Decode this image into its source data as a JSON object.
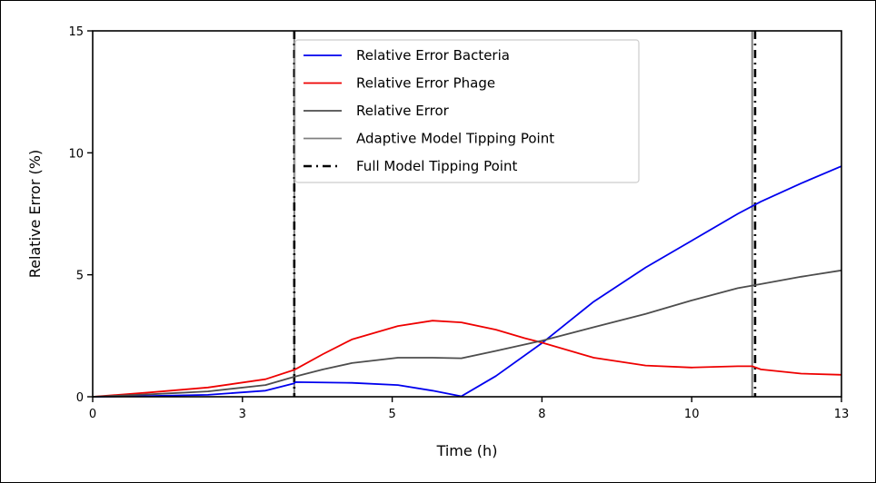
{
  "chart_data": {
    "type": "line",
    "title": "",
    "xlabel": "Time (h)",
    "ylabel": "Relative Error (%)",
    "xlim": [
      0,
      13
    ],
    "ylim": [
      0,
      15
    ],
    "x_ticks": [
      0,
      2.6,
      5.2,
      7.8,
      10.4,
      13
    ],
    "x_tick_labels": [
      "0",
      "3",
      "5",
      "8",
      "10",
      "13"
    ],
    "y_ticks": [
      0,
      5,
      10,
      15
    ],
    "y_tick_labels": [
      "0",
      "5",
      "10",
      "15"
    ],
    "grid": false,
    "legend_position": "top-center",
    "series": [
      {
        "name": "Relative Error Bacteria",
        "color": "#0000ee",
        "x": [
          0,
          1,
          2,
          3,
          3.5,
          3.52,
          4.5,
          5.3,
          5.9,
          6.4,
          7,
          7.8,
          8.7,
          9.6,
          10.4,
          11.2,
          11.6,
          12.3,
          13
        ],
        "y": [
          0,
          0.03,
          0.08,
          0.25,
          0.55,
          0.6,
          0.57,
          0.48,
          0.25,
          0.02,
          0.85,
          2.2,
          3.9,
          5.3,
          6.4,
          7.5,
          8.0,
          8.75,
          9.45
        ]
      },
      {
        "name": "Relative Error Phage",
        "color": "#ee0000",
        "x": [
          0,
          1,
          2,
          3,
          3.5,
          4,
          4.5,
          5.3,
          5.9,
          6.4,
          7,
          7.5,
          7.8,
          8.7,
          9.6,
          10.4,
          11.2,
          11.45,
          11.6,
          12.3,
          13
        ],
        "y": [
          0,
          0.18,
          0.38,
          0.72,
          1.1,
          1.75,
          2.35,
          2.9,
          3.12,
          3.05,
          2.75,
          2.4,
          2.22,
          1.6,
          1.28,
          1.2,
          1.25,
          1.25,
          1.12,
          0.95,
          0.9
        ]
      },
      {
        "name": "Relative Error",
        "color": "#4d4d4d",
        "x": [
          0,
          1,
          2,
          3,
          3.5,
          4,
          4.5,
          5.3,
          5.9,
          6.4,
          7,
          7.8,
          8.7,
          9.6,
          10.4,
          11.2,
          11.6,
          12.3,
          13
        ],
        "y": [
          0,
          0.1,
          0.22,
          0.48,
          0.82,
          1.12,
          1.38,
          1.6,
          1.6,
          1.58,
          1.88,
          2.3,
          2.85,
          3.4,
          3.95,
          4.45,
          4.62,
          4.92,
          5.18
        ]
      }
    ],
    "vertical_lines": [
      {
        "name": "Adaptive Model Tipping Point",
        "style": "solid",
        "color": "#808080",
        "x": [
          3.5,
          11.45
        ]
      },
      {
        "name": "Full Model Tipping Point",
        "style": "dashdot",
        "color": "#000000",
        "x": [
          3.5,
          11.5
        ]
      }
    ],
    "legend": [
      {
        "label": "Relative Error Bacteria",
        "color": "#0000ee",
        "style": "solid"
      },
      {
        "label": "Relative Error Phage",
        "color": "#ee0000",
        "style": "solid"
      },
      {
        "label": "Relative Error",
        "color": "#4d4d4d",
        "style": "solid"
      },
      {
        "label": "Adaptive Model Tipping Point",
        "color": "#808080",
        "style": "solid"
      },
      {
        "label": "Full Model Tipping Point",
        "color": "#000000",
        "style": "dashdot"
      }
    ]
  }
}
